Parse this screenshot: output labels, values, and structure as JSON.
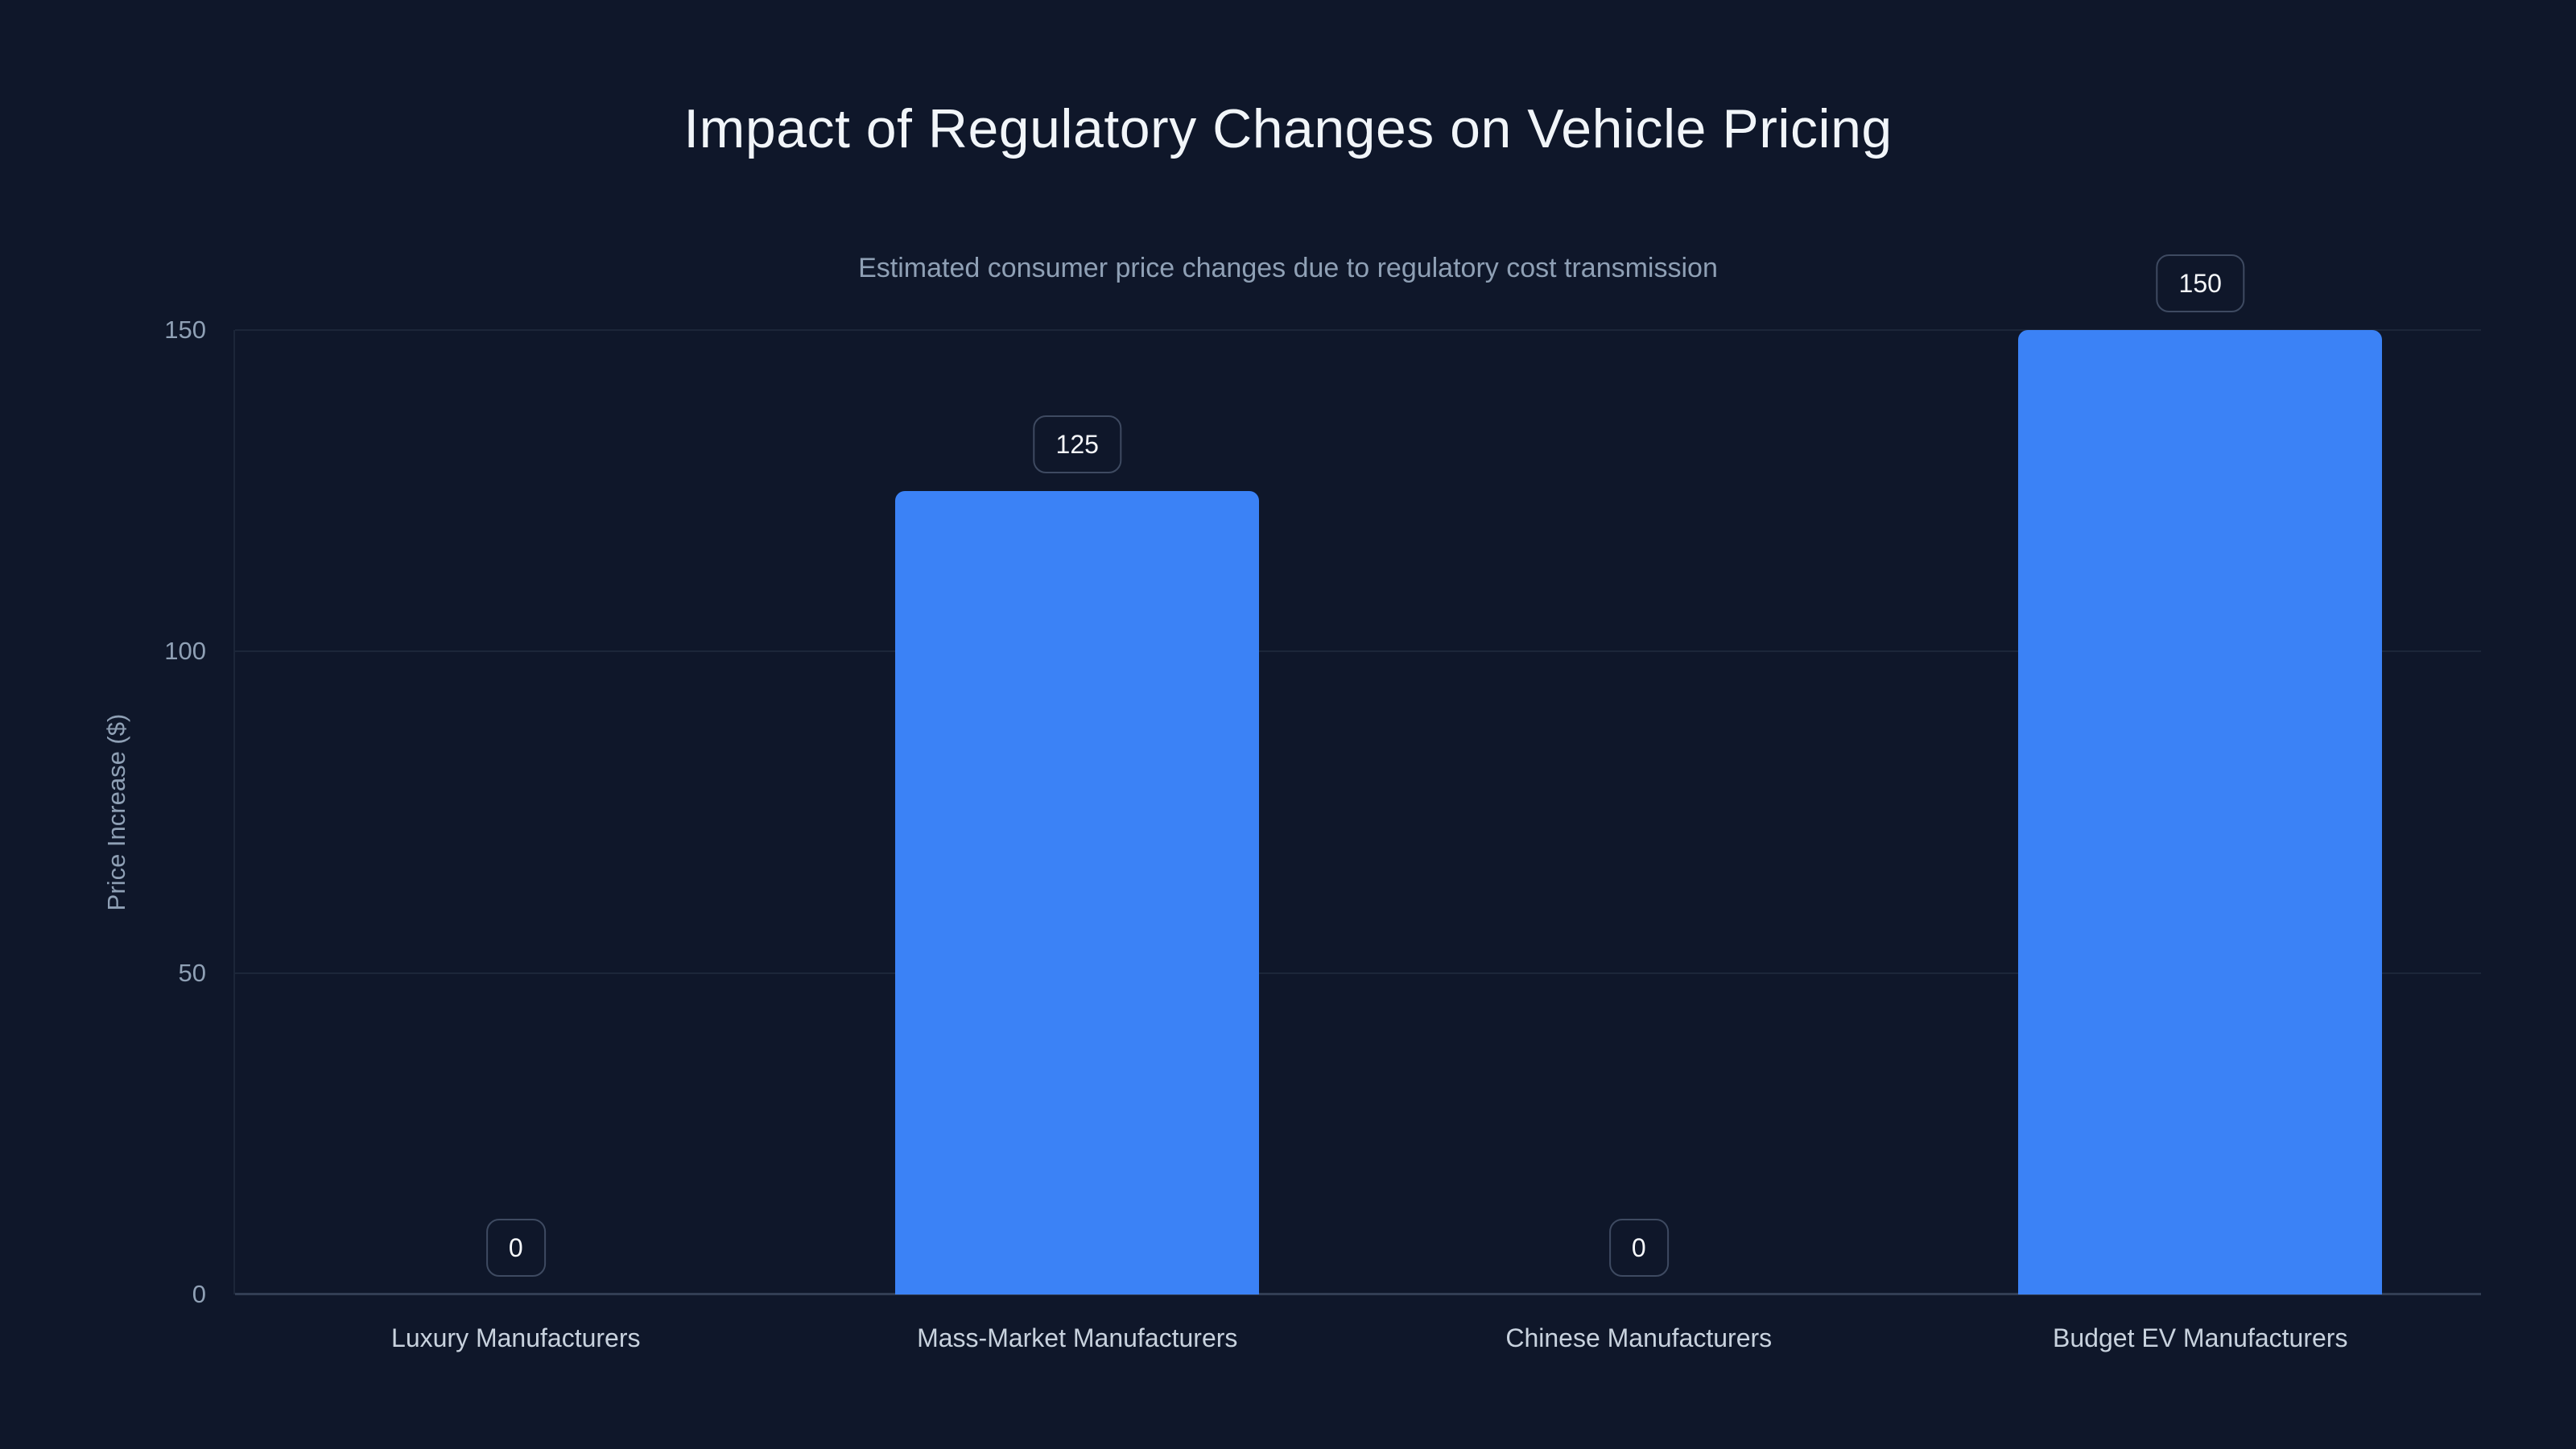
{
  "page": {
    "background_color": "#0f172a"
  },
  "chart_data": {
    "type": "bar",
    "title": "Impact of Regulatory Changes on Vehicle Pricing",
    "subtitle": "Estimated consumer price changes due to regulatory cost transmission",
    "xlabel": "",
    "ylabel": "Price Increase ($)",
    "categories": [
      "Luxury Manufacturers",
      "Mass-Market Manufacturers",
      "Chinese Manufacturers",
      "Budget EV Manufacturers"
    ],
    "values": [
      0,
      125,
      0,
      150
    ],
    "value_labels": [
      "0",
      "125",
      "0",
      "150"
    ],
    "yticks": [
      0,
      50,
      100,
      150
    ],
    "ylim": [
      0,
      150
    ],
    "grid": true,
    "legend": false,
    "colors": {
      "background": "#0f172a",
      "bar": "#3b82f6",
      "grid_line": "#1c2639",
      "axis_line": "#323e54",
      "title_text": "#f1f5f9",
      "muted_text": "#8fa0b5",
      "x_label_text": "#c8d2de",
      "chip_text": "#f6f8fb",
      "chip_border": "#3e4a61"
    }
  }
}
